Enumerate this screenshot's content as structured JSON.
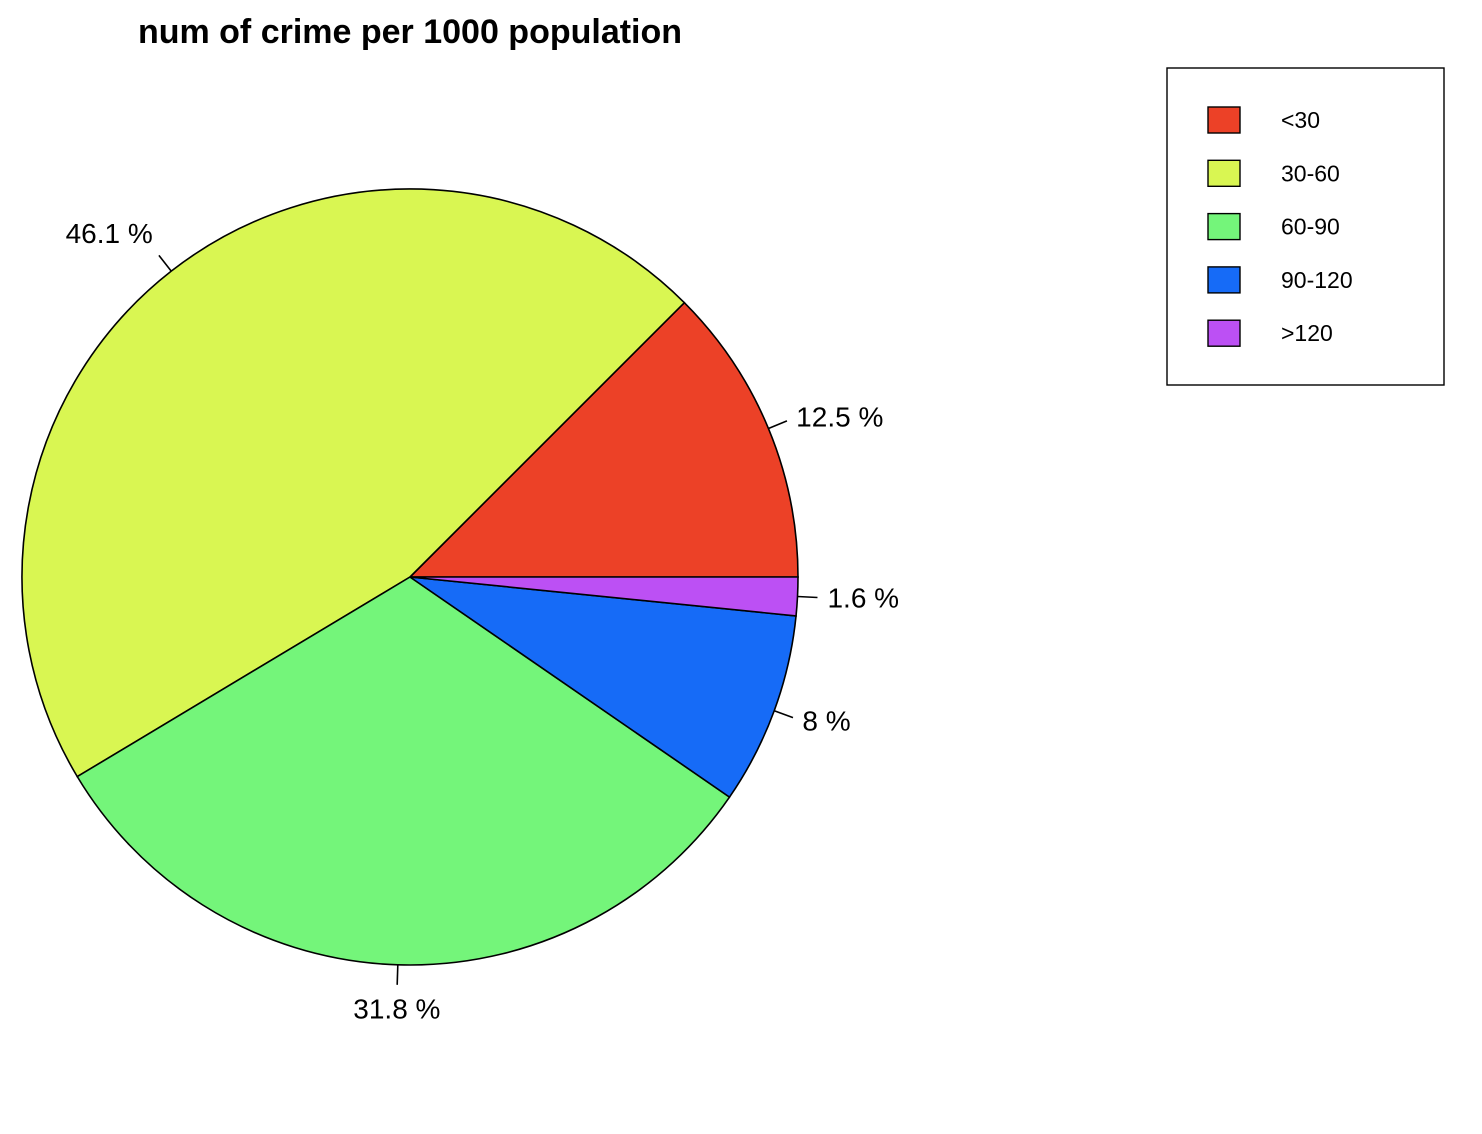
{
  "chart_data": {
    "type": "pie",
    "title": "num of crime per 1000 population",
    "categories": [
      "<30",
      "30-60",
      "60-90",
      "90-120",
      ">120"
    ],
    "values": [
      12.5,
      46.1,
      31.8,
      8.0,
      1.6
    ],
    "labels": [
      "12.5 %",
      "46.1 %",
      "31.8 %",
      "8 %",
      "1.6 %"
    ],
    "colors": [
      "#EC4127",
      "#D9F652",
      "#74F57A",
      "#166BF7",
      "#BC50F4"
    ],
    "start": "3 o'clock",
    "direction": "counterclockwise",
    "legend": {
      "placement": "top-right",
      "entries": [
        "<30",
        "30-60",
        "60-90",
        "90-120",
        ">120"
      ]
    }
  }
}
